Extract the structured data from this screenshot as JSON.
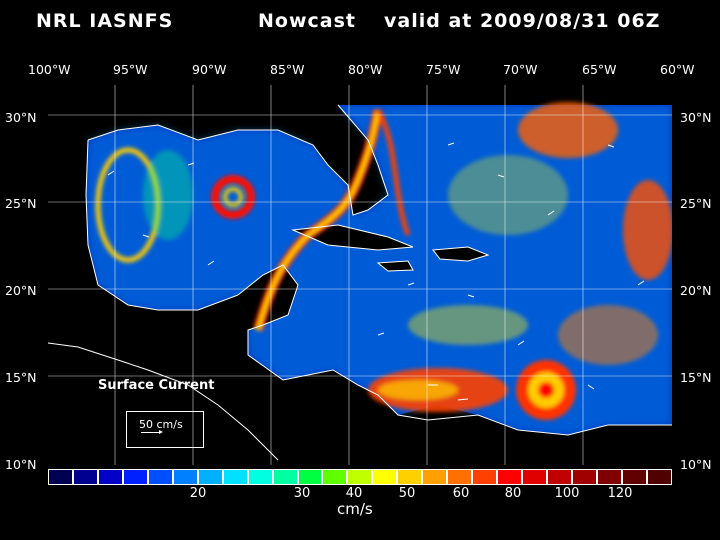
{
  "header": {
    "model": "NRL IASNFS",
    "product": "Nowcast",
    "valid": "valid at 2009/08/31 06Z"
  },
  "map": {
    "lon_labels": [
      "100°W",
      "95°W",
      "90°W",
      "85°W",
      "80°W",
      "75°W",
      "70°W",
      "65°W",
      "60°W"
    ],
    "lat_labels": [
      "30°N",
      "25°N",
      "20°N",
      "15°N",
      "10°N"
    ],
    "lat_labels_right": [
      "30°N",
      "25°N",
      "20°N",
      "15°N",
      "10°N"
    ],
    "field_label": "Surface Current",
    "scale_label": "50 cm/s",
    "lon_range": [
      -100,
      -60
    ],
    "lat_range": [
      10,
      31.5
    ]
  },
  "colorbar": {
    "units": "cm/s",
    "tick_labels": [
      "20",
      "30",
      "40",
      "50",
      "60",
      "80",
      "100",
      "120"
    ],
    "colors": [
      "#000050",
      "#000090",
      "#0000c8",
      "#0020ff",
      "#0050ff",
      "#0080ff",
      "#00b0ff",
      "#00e0ff",
      "#00ffe0",
      "#00ffa0",
      "#00ff40",
      "#60ff00",
      "#c0ff00",
      "#ffff00",
      "#ffd000",
      "#ffa000",
      "#ff7000",
      "#ff4000",
      "#ff0000",
      "#e00000",
      "#c00000",
      "#a00000",
      "#800000",
      "#600000",
      "#500000"
    ]
  }
}
